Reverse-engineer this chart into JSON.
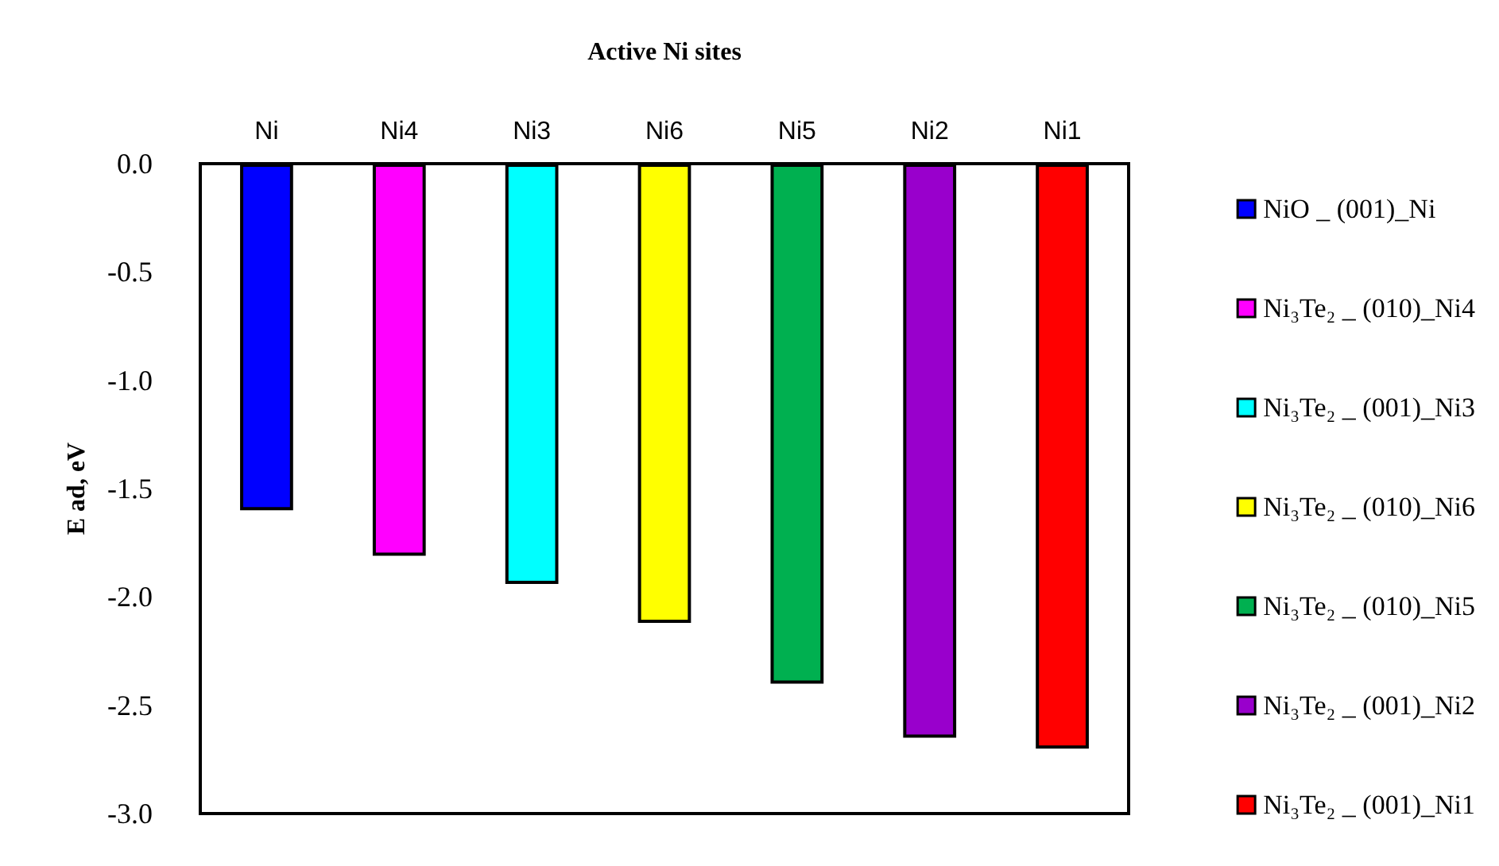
{
  "chart_data": {
    "type": "bar",
    "xlabel": "Active Ni sites",
    "ylabel": "E ad, eV",
    "categories": [
      "Ni",
      "Ni4",
      "Ni3",
      "Ni6",
      "Ni5",
      "Ni2",
      "Ni1"
    ],
    "stacked": true,
    "ylim": [
      -3,
      0
    ],
    "yticks": [
      {
        "value": -3,
        "label": "-3.0"
      },
      {
        "value": -2.5,
        "label": "-2.5"
      },
      {
        "value": -2,
        "label": "-2.0"
      },
      {
        "value": -1.5,
        "label": "-1.5"
      },
      {
        "value": -1,
        "label": "-1.0"
      },
      {
        "value": -0.5,
        "label": "-0.5"
      },
      {
        "value": 0,
        "label": "0.0"
      }
    ],
    "grid": false,
    "legend": "right",
    "series": [
      {
        "name": "NiO _ (001)_Ni",
        "color": "#0000ff",
        "values": [
          -1.6,
          null,
          null,
          null,
          null,
          null,
          null
        ]
      },
      {
        "name": "Ni₃Te₂ _ (010)_Ni4",
        "color": "#ff00ff",
        "values": [
          null,
          -1.81,
          null,
          null,
          null,
          null,
          null
        ]
      },
      {
        "name": "Ni₃Te₂ _ (001)_Ni3",
        "color": "#00ffff",
        "values": [
          null,
          null,
          -1.94,
          null,
          null,
          null,
          null
        ]
      },
      {
        "name": "Ni₃Te₂ _ (010)_Ni6",
        "color": "#ffff00",
        "values": [
          null,
          null,
          null,
          -2.12,
          null,
          null,
          null
        ]
      },
      {
        "name": "Ni₃Te₂ _ (010)_Ni5",
        "color": "#00b050",
        "values": [
          null,
          null,
          null,
          null,
          -2.4,
          null,
          null
        ]
      },
      {
        "name": "Ni₃Te₂ _ (001)_Ni2",
        "color": "#9900cc",
        "values": [
          null,
          null,
          null,
          null,
          null,
          -2.65,
          null
        ]
      },
      {
        "name": "Ni₃Te₂ _ (001)_Ni1",
        "color": "#ff0000",
        "values": [
          null,
          null,
          null,
          null,
          null,
          null,
          -2.7
        ]
      }
    ]
  }
}
